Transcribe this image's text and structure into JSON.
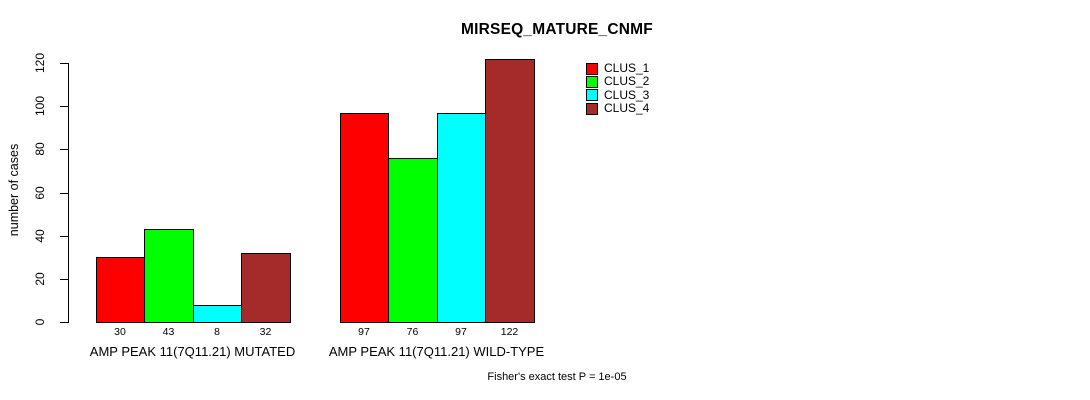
{
  "chart_data": {
    "type": "bar",
    "title": "MIRSEQ_MATURE_CNMF",
    "ylabel": "number of cases",
    "xlabel": "",
    "categories": [
      "AMP PEAK 11(7Q11.21) MUTATED",
      "AMP PEAK 11(7Q11.21) WILD-TYPE"
    ],
    "series": [
      {
        "name": "CLUS_1",
        "color": "#ff0000",
        "values": [
          30,
          97
        ]
      },
      {
        "name": "CLUS_2",
        "color": "#00ff00",
        "values": [
          43,
          76
        ]
      },
      {
        "name": "CLUS_3",
        "color": "#00ffff",
        "values": [
          8,
          97
        ]
      },
      {
        "name": "CLUS_4",
        "color": "#a52a2a",
        "values": [
          32,
          122
        ]
      }
    ],
    "yticks": [
      0,
      20,
      40,
      60,
      80,
      100,
      120
    ],
    "ylim": [
      0,
      122
    ],
    "bar_value_labels_shown": true,
    "grid": false,
    "legend": {
      "position": "top-right",
      "entries": [
        "CLUS_1",
        "CLUS_2",
        "CLUS_3",
        "CLUS_4"
      ]
    },
    "annotation": "Fisher's exact test P = 1e-05"
  }
}
